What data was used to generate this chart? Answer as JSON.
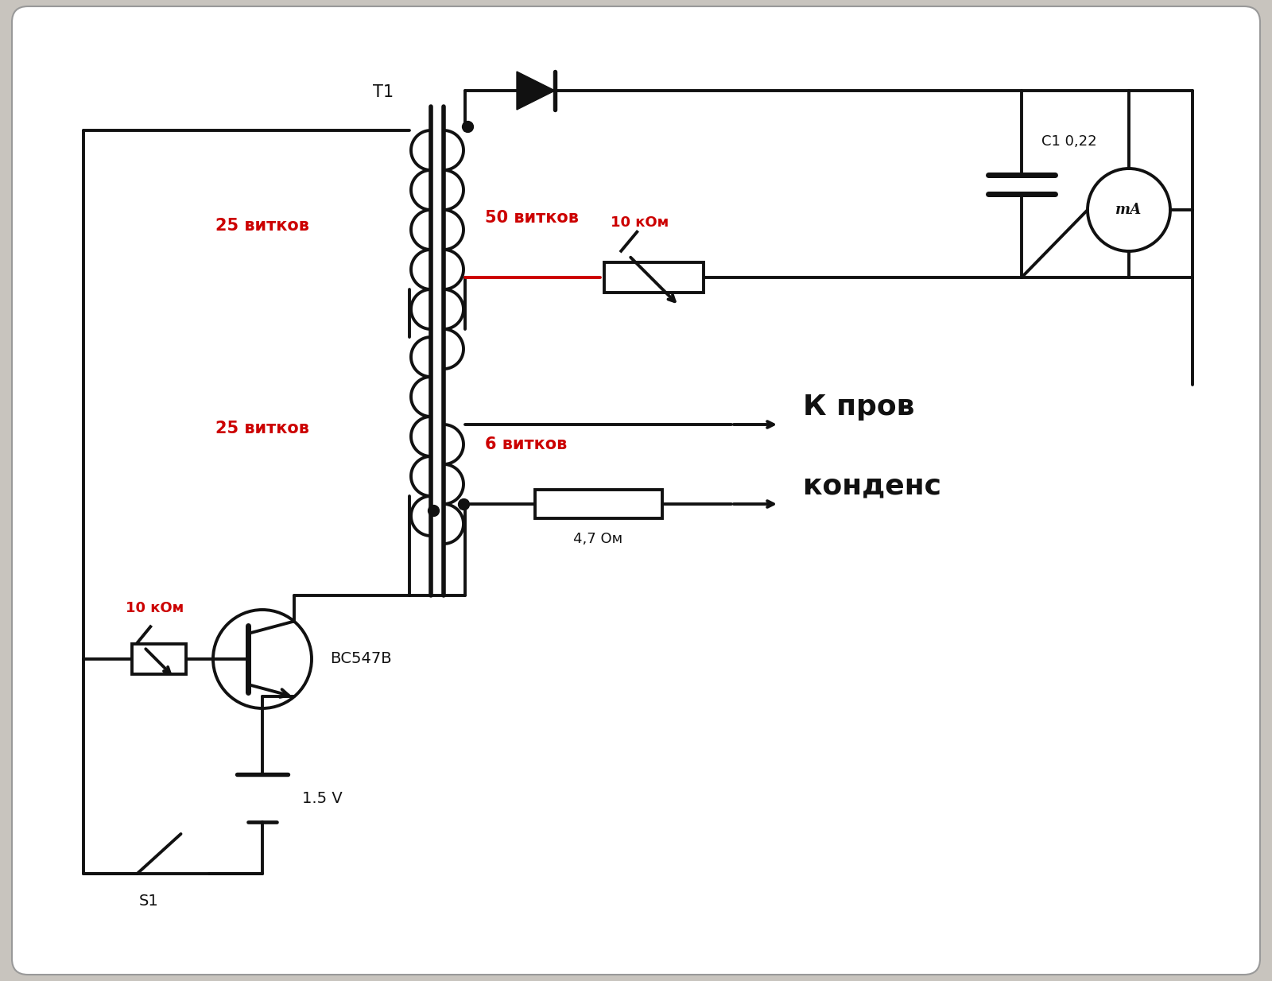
{
  "bg_outer": "#c8c4be",
  "bg_inner": "#ffffff",
  "line_color": "#111111",
  "red_color": "#cc0000",
  "lw": 2.8,
  "lw_thick": 4.0,
  "labels": {
    "T1": "T1",
    "winding25a": "25 витков",
    "winding50": "50 витков",
    "winding25b": "25 витков",
    "winding6": "6 витков",
    "C1": "C1 0,22",
    "R_10k_top": "10 кОм",
    "R_10k_bot": "10 кОм",
    "R_47": "4,7 Ом",
    "transistor": "ВС547В",
    "voltage": "1.5 V",
    "switch": "S1",
    "to_cap_line1": "К пров",
    "to_cap_line2": "конденс",
    "mA": "mА"
  },
  "figsize": [
    16.0,
    12.34
  ],
  "dpi": 100,
  "xlim": [
    0,
    16.0
  ],
  "ylim": [
    0,
    12.34
  ]
}
